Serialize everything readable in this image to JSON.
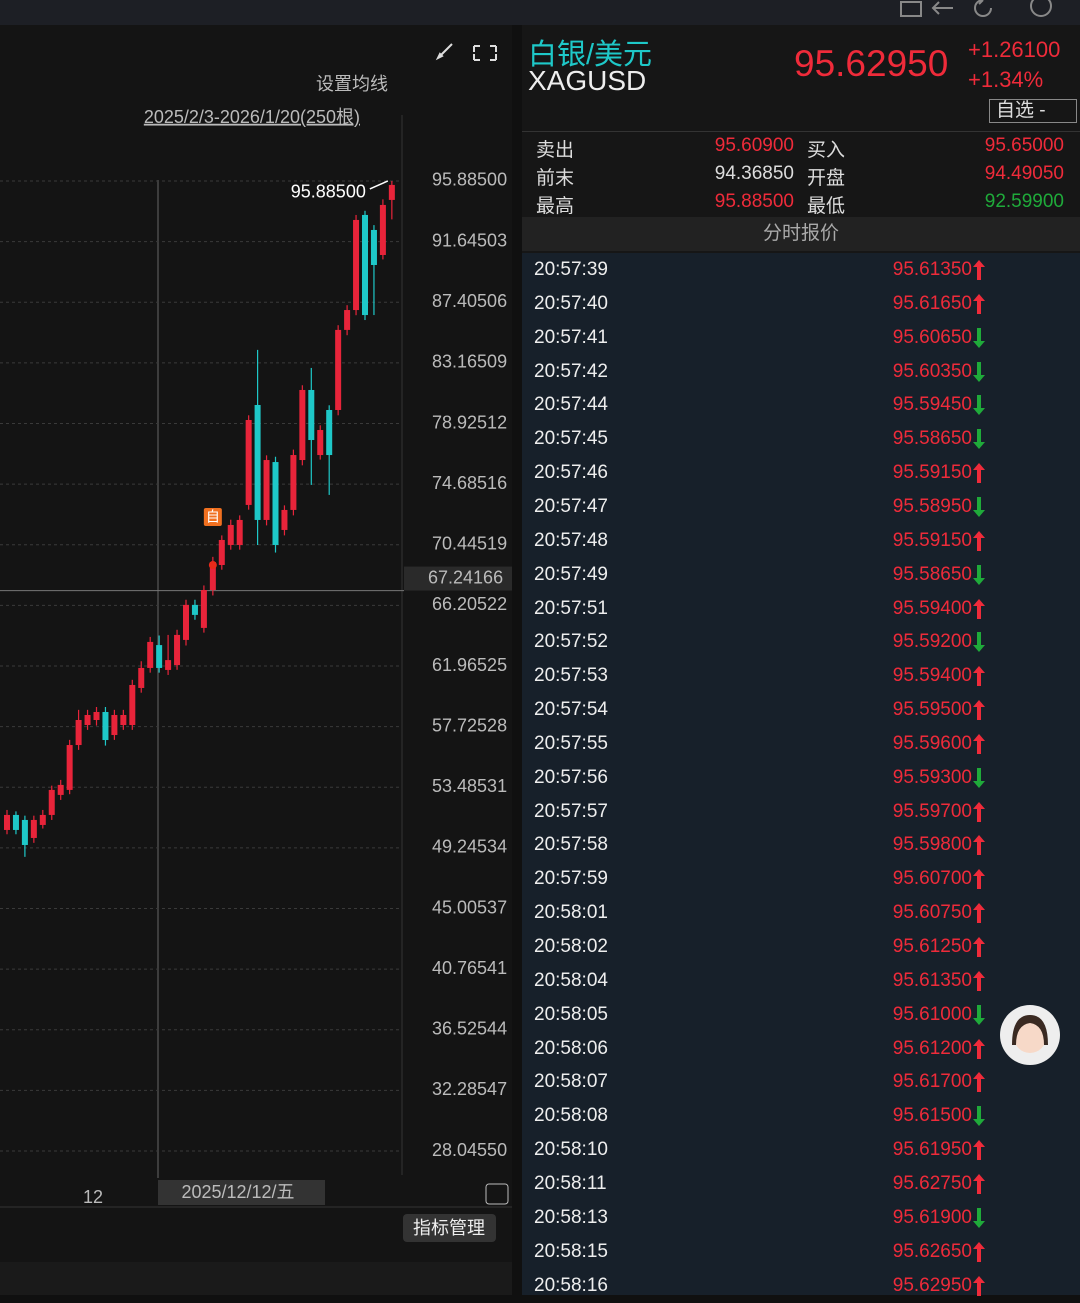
{
  "left_panel": {
    "ma_setting": "设置均线",
    "range_label": "2025/2/3-2026/1/20(250根)",
    "x_label": "12",
    "cursor_date": "2025/12/12/五",
    "indicator_button": "指标管理"
  },
  "chart_data": {
    "type": "candlestick",
    "annotation": {
      "label": "95.88500",
      "value": 95.885
    },
    "marker": "自",
    "current": {
      "value": 67.24166,
      "label": "67.24166"
    },
    "ylim": [
      26.37,
      100.5
    ],
    "yticks": [
      {
        "value": 95.885,
        "label": "95.88500"
      },
      {
        "value": 91.64503,
        "label": "91.64503"
      },
      {
        "value": 87.40506,
        "label": "87.40506"
      },
      {
        "value": 83.16509,
        "label": "83.16509"
      },
      {
        "value": 78.92512,
        "label": "78.92512"
      },
      {
        "value": 74.68516,
        "label": "74.68516"
      },
      {
        "value": 70.44519,
        "label": "70.44519"
      },
      {
        "value": 66.20522,
        "label": "66.20522"
      },
      {
        "value": 61.96525,
        "label": "61.96525"
      },
      {
        "value": 57.72528,
        "label": "57.72528"
      },
      {
        "value": 53.48531,
        "label": "53.48531"
      },
      {
        "value": 49.24534,
        "label": "49.24534"
      },
      {
        "value": 45.00537,
        "label": "45.00537"
      },
      {
        "value": 40.76541,
        "label": "40.76541"
      },
      {
        "value": 36.52544,
        "label": "36.52544"
      },
      {
        "value": 32.28547,
        "label": "32.28547"
      },
      {
        "value": 28.0455,
        "label": "28.04550"
      }
    ],
    "up_color": "#e8243a",
    "down_color": "#1ec8c8",
    "grid": true,
    "candles": [
      [
        50.5,
        51.9,
        50.2,
        51.55
      ],
      [
        51.55,
        51.8,
        50.2,
        50.5
      ],
      [
        51.2,
        51.5,
        48.62,
        49.45
      ],
      [
        49.94,
        51.5,
        49.6,
        51.2
      ],
      [
        50.85,
        51.9,
        50.6,
        51.55
      ],
      [
        51.55,
        53.6,
        51.2,
        53.3
      ],
      [
        52.95,
        54.0,
        52.6,
        53.65
      ],
      [
        53.3,
        56.8,
        53.0,
        56.44
      ],
      [
        56.44,
        58.9,
        56.1,
        58.19
      ],
      [
        57.84,
        58.9,
        57.5,
        58.54
      ],
      [
        58.19,
        59.1,
        57.8,
        58.75
      ],
      [
        58.75,
        59.1,
        56.4,
        56.79
      ],
      [
        57.14,
        58.9,
        56.8,
        58.54
      ],
      [
        57.84,
        58.9,
        57.5,
        58.54
      ],
      [
        57.84,
        61.0,
        57.5,
        60.64
      ],
      [
        60.43,
        62.3,
        60.1,
        61.83
      ],
      [
        61.83,
        64.0,
        61.5,
        63.65
      ],
      [
        63.43,
        64.1,
        61.5,
        61.83
      ],
      [
        61.69,
        64.14,
        61.34,
        62.38
      ],
      [
        62.03,
        64.5,
        61.7,
        64.14
      ],
      [
        63.79,
        66.6,
        63.4,
        66.24
      ],
      [
        66.24,
        66.6,
        65.2,
        65.54
      ],
      [
        64.63,
        67.6,
        64.3,
        67.28
      ],
      [
        67.28,
        69.6,
        66.9,
        69.24
      ],
      [
        69.03,
        71.1,
        68.7,
        70.78
      ],
      [
        70.43,
        72.2,
        70.1,
        71.83
      ],
      [
        70.43,
        72.5,
        70.1,
        72.18
      ],
      [
        73.23,
        79.5,
        72.9,
        79.17
      ],
      [
        80.22,
        84.07,
        70.43,
        72.18
      ],
      [
        72.18,
        76.7,
        71.8,
        76.37
      ],
      [
        76.23,
        76.6,
        69.9,
        70.43
      ],
      [
        71.48,
        73.2,
        71.1,
        72.88
      ],
      [
        72.88,
        77.1,
        72.5,
        76.72
      ],
      [
        76.37,
        81.6,
        76.0,
        81.27
      ],
      [
        81.27,
        82.81,
        74.63,
        77.77
      ],
      [
        76.72,
        78.8,
        76.4,
        78.47
      ],
      [
        79.87,
        80.2,
        73.93,
        76.72
      ],
      [
        79.87,
        85.8,
        79.5,
        85.47
      ],
      [
        85.47,
        87.2,
        85.1,
        86.86
      ],
      [
        86.86,
        93.51,
        86.5,
        93.16
      ],
      [
        93.51,
        93.8,
        86.16,
        86.51
      ],
      [
        92.46,
        92.8,
        86.51,
        90.01
      ],
      [
        90.71,
        94.6,
        90.4,
        94.21
      ],
      [
        94.56,
        95.885,
        93.2,
        95.61
      ]
    ]
  },
  "quote": {
    "name": "白银/美元",
    "symbol": "XAGUSD",
    "price": "95.62950",
    "change": "+1.26100",
    "change_pct": "+1.34%",
    "watch": "自选 -",
    "fields": [
      [
        "卖出",
        "95.60900",
        "买入",
        "95.65000"
      ],
      [
        "前末",
        "94.36850",
        "开盘",
        "94.49050"
      ],
      [
        "最高",
        "95.88500",
        "最低",
        "92.59900"
      ]
    ],
    "ticks_title": "分时报价",
    "ticks": [
      [
        "20:57:39",
        "95.61350",
        "up"
      ],
      [
        "20:57:40",
        "95.61650",
        "up"
      ],
      [
        "20:57:41",
        "95.60650",
        "down"
      ],
      [
        "20:57:42",
        "95.60350",
        "down"
      ],
      [
        "20:57:44",
        "95.59450",
        "down"
      ],
      [
        "20:57:45",
        "95.58650",
        "down"
      ],
      [
        "20:57:46",
        "95.59150",
        "up"
      ],
      [
        "20:57:47",
        "95.58950",
        "down"
      ],
      [
        "20:57:48",
        "95.59150",
        "up"
      ],
      [
        "20:57:49",
        "95.58650",
        "down"
      ],
      [
        "20:57:51",
        "95.59400",
        "up"
      ],
      [
        "20:57:52",
        "95.59200",
        "down"
      ],
      [
        "20:57:53",
        "95.59400",
        "up"
      ],
      [
        "20:57:54",
        "95.59500",
        "up"
      ],
      [
        "20:57:55",
        "95.59600",
        "up"
      ],
      [
        "20:57:56",
        "95.59300",
        "down"
      ],
      [
        "20:57:57",
        "95.59700",
        "up"
      ],
      [
        "20:57:58",
        "95.59800",
        "up"
      ],
      [
        "20:57:59",
        "95.60700",
        "up"
      ],
      [
        "20:58:01",
        "95.60750",
        "up"
      ],
      [
        "20:58:02",
        "95.61250",
        "up"
      ],
      [
        "20:58:04",
        "95.61350",
        "up"
      ],
      [
        "20:58:05",
        "95.61000",
        "down"
      ],
      [
        "20:58:06",
        "95.61200",
        "up"
      ],
      [
        "20:58:07",
        "95.61700",
        "up"
      ],
      [
        "20:58:08",
        "95.61500",
        "down"
      ],
      [
        "20:58:10",
        "95.61950",
        "up"
      ],
      [
        "20:58:11",
        "95.62750",
        "up"
      ],
      [
        "20:58:13",
        "95.61900",
        "down"
      ],
      [
        "20:58:15",
        "95.62650",
        "up"
      ],
      [
        "20:58:16",
        "95.62950",
        "up"
      ]
    ]
  }
}
